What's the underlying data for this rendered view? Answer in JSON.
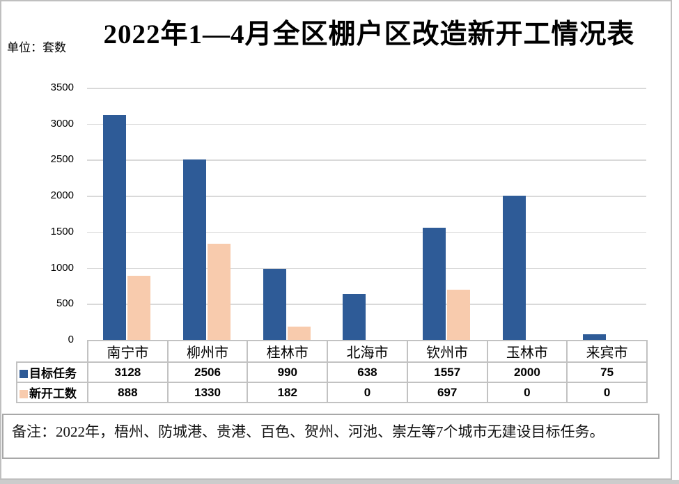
{
  "title": "2022年1—4月全区棚户区改造新开工情况表",
  "unit_label": "单位：套数",
  "note": "备注：2022年，梧州、防城港、贵港、百色、贺州、河池、崇左等7个城市无建设目标任务。",
  "chart_data": {
    "type": "bar",
    "title": "2022年1—4月全区棚户区改造新开工情况表",
    "ylabel": "套数",
    "categories": [
      "南宁市",
      "柳州市",
      "桂林市",
      "北海市",
      "钦州市",
      "玉林市",
      "来宾市"
    ],
    "series": [
      {
        "name": "目标任务",
        "color": "#2E5B97",
        "values": [
          3128,
          2506,
          990,
          638,
          1557,
          2000,
          75
        ]
      },
      {
        "name": "新开工数",
        "color": "#F8CBAD",
        "values": [
          888,
          1330,
          182,
          0,
          697,
          0,
          0
        ]
      }
    ],
    "ylim": [
      0,
      3500
    ],
    "ytick_step": 500,
    "grid": true,
    "legend_position": "table-left",
    "colors": {
      "gridline": "#d9d9d9",
      "table_border": "#c2c2c2",
      "note_border": "#a8a8a8",
      "frame_border": "#bfbfbf"
    }
  }
}
